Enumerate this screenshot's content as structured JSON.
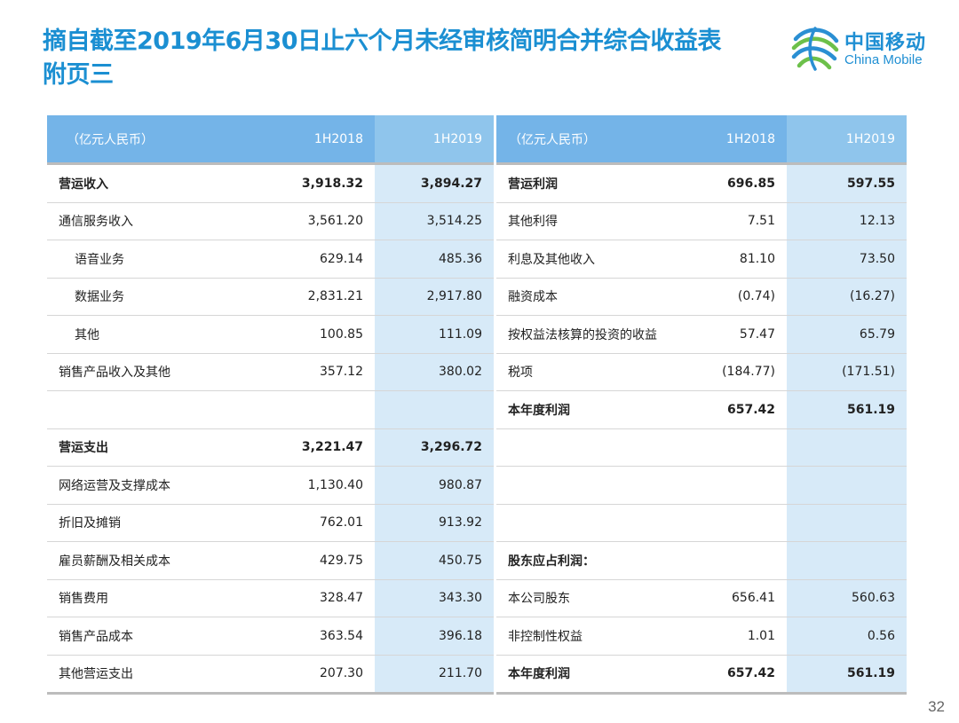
{
  "header": {
    "title_line1": "摘自截至2019年6月30日止六个月未经审核简明合并综合收益表",
    "title_line2": "附页三",
    "logo_cn": "中国移动",
    "logo_en": "China Mobile",
    "brand_color": "#1b8fd2"
  },
  "left_table": {
    "headers": [
      "（亿元人民币）",
      "1H2018",
      "1H2019"
    ],
    "rows": [
      {
        "label": "营运收入",
        "v2018": "3,918.32",
        "v2019": "3,894.27",
        "bold": true
      },
      {
        "label": "通信服务收入",
        "v2018": "3,561.20",
        "v2019": "3,514.25"
      },
      {
        "label": "语音业务",
        "v2018": "629.14",
        "v2019": "485.36",
        "indent": true
      },
      {
        "label": "数据业务",
        "v2018": "2,831.21",
        "v2019": "2,917.80",
        "indent": true
      },
      {
        "label": "其他",
        "v2018": "100.85",
        "v2019": "111.09",
        "indent": true
      },
      {
        "label": "销售产品收入及其他",
        "v2018": "357.12",
        "v2019": "380.02"
      },
      {
        "label": "",
        "v2018": "",
        "v2019": ""
      },
      {
        "label": "营运支出",
        "v2018": "3,221.47",
        "v2019": "3,296.72",
        "bold": true
      },
      {
        "label": "网络运营及支撑成本",
        "v2018": "1,130.40",
        "v2019": "980.87"
      },
      {
        "label": "折旧及摊销",
        "v2018": "762.01",
        "v2019": "913.92"
      },
      {
        "label": "雇员薪酬及相关成本",
        "v2018": "429.75",
        "v2019": "450.75"
      },
      {
        "label": "销售费用",
        "v2018": "328.47",
        "v2019": "343.30"
      },
      {
        "label": "销售产品成本",
        "v2018": "363.54",
        "v2019": "396.18"
      },
      {
        "label": "其他营运支出",
        "v2018": "207.30",
        "v2019": "211.70"
      }
    ]
  },
  "right_table": {
    "headers": [
      "（亿元人民币）",
      "1H2018",
      "1H2019"
    ],
    "rows": [
      {
        "label": "营运利润",
        "v2018": "696.85",
        "v2019": "597.55",
        "bold": true
      },
      {
        "label": "其他利得",
        "v2018": "7.51",
        "v2019": "12.13"
      },
      {
        "label": "利息及其他收入",
        "v2018": "81.10",
        "v2019": "73.50"
      },
      {
        "label": "融资成本",
        "v2018": "(0.74)",
        "v2019": "(16.27)"
      },
      {
        "label": "按权益法核算的投资的收益",
        "v2018": "57.47",
        "v2019": "65.79"
      },
      {
        "label": "税项",
        "v2018": "(184.77)",
        "v2019": "(171.51)"
      },
      {
        "label": "本年度利润",
        "v2018": "657.42",
        "v2019": "561.19",
        "bold": true
      },
      {
        "label": "",
        "v2018": "",
        "v2019": ""
      },
      {
        "label": "",
        "v2018": "",
        "v2019": ""
      },
      {
        "label": "",
        "v2018": "",
        "v2019": ""
      },
      {
        "label": "股东应占利润：",
        "v2018": "",
        "v2019": "",
        "bold": true
      },
      {
        "label": "本公司股东",
        "v2018": "656.41",
        "v2019": "560.63"
      },
      {
        "label": "非控制性权益",
        "v2018": "1.01",
        "v2019": "0.56"
      },
      {
        "label": "本年度利润",
        "v2018": "657.42",
        "v2019": "561.19",
        "bold": true
      }
    ]
  },
  "footer": {
    "page_number": "32"
  }
}
